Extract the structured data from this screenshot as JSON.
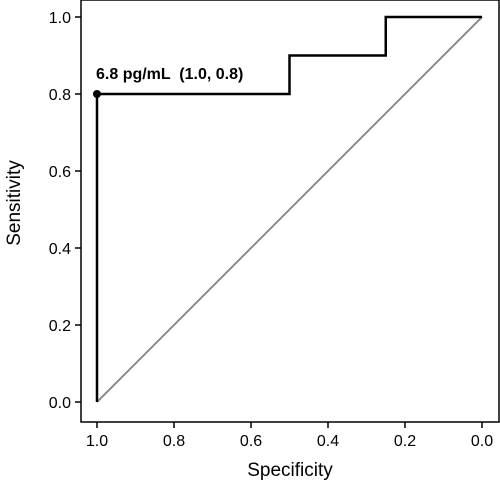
{
  "chart_data": {
    "type": "line",
    "title": "",
    "xlabel": "Specificity",
    "ylabel": "Sensitivity",
    "xlim": [
      1.0,
      0.0
    ],
    "ylim": [
      0.0,
      1.0
    ],
    "x_reversed": true,
    "grid": false,
    "x_ticks": [
      "1.0",
      "0.8",
      "0.6",
      "0.4",
      "0.2",
      "0.0"
    ],
    "y_ticks": [
      "0.0",
      "0.2",
      "0.4",
      "0.6",
      "0.8",
      "1.0"
    ],
    "series": [
      {
        "kind": "roc-step",
        "color": "#000000",
        "points": [
          {
            "x": 1.0,
            "y": 0.0
          },
          {
            "x": 1.0,
            "y": 0.8
          },
          {
            "x": 0.5,
            "y": 0.8
          },
          {
            "x": 0.5,
            "y": 0.9
          },
          {
            "x": 0.25,
            "y": 0.9
          },
          {
            "x": 0.25,
            "y": 1.0
          },
          {
            "x": 0.0,
            "y": 1.0
          }
        ]
      },
      {
        "kind": "reference-diagonal",
        "color": "#8c8c8c",
        "points": [
          {
            "x": 1.0,
            "y": 0.0
          },
          {
            "x": 0.0,
            "y": 1.0
          }
        ]
      }
    ],
    "highlight_point": {
      "x": 1.0,
      "y": 0.8
    },
    "annotations": [
      {
        "text": "6.8 pg/mL  (1.0, 0.8)",
        "x": 1.0,
        "y": 0.8
      }
    ]
  }
}
